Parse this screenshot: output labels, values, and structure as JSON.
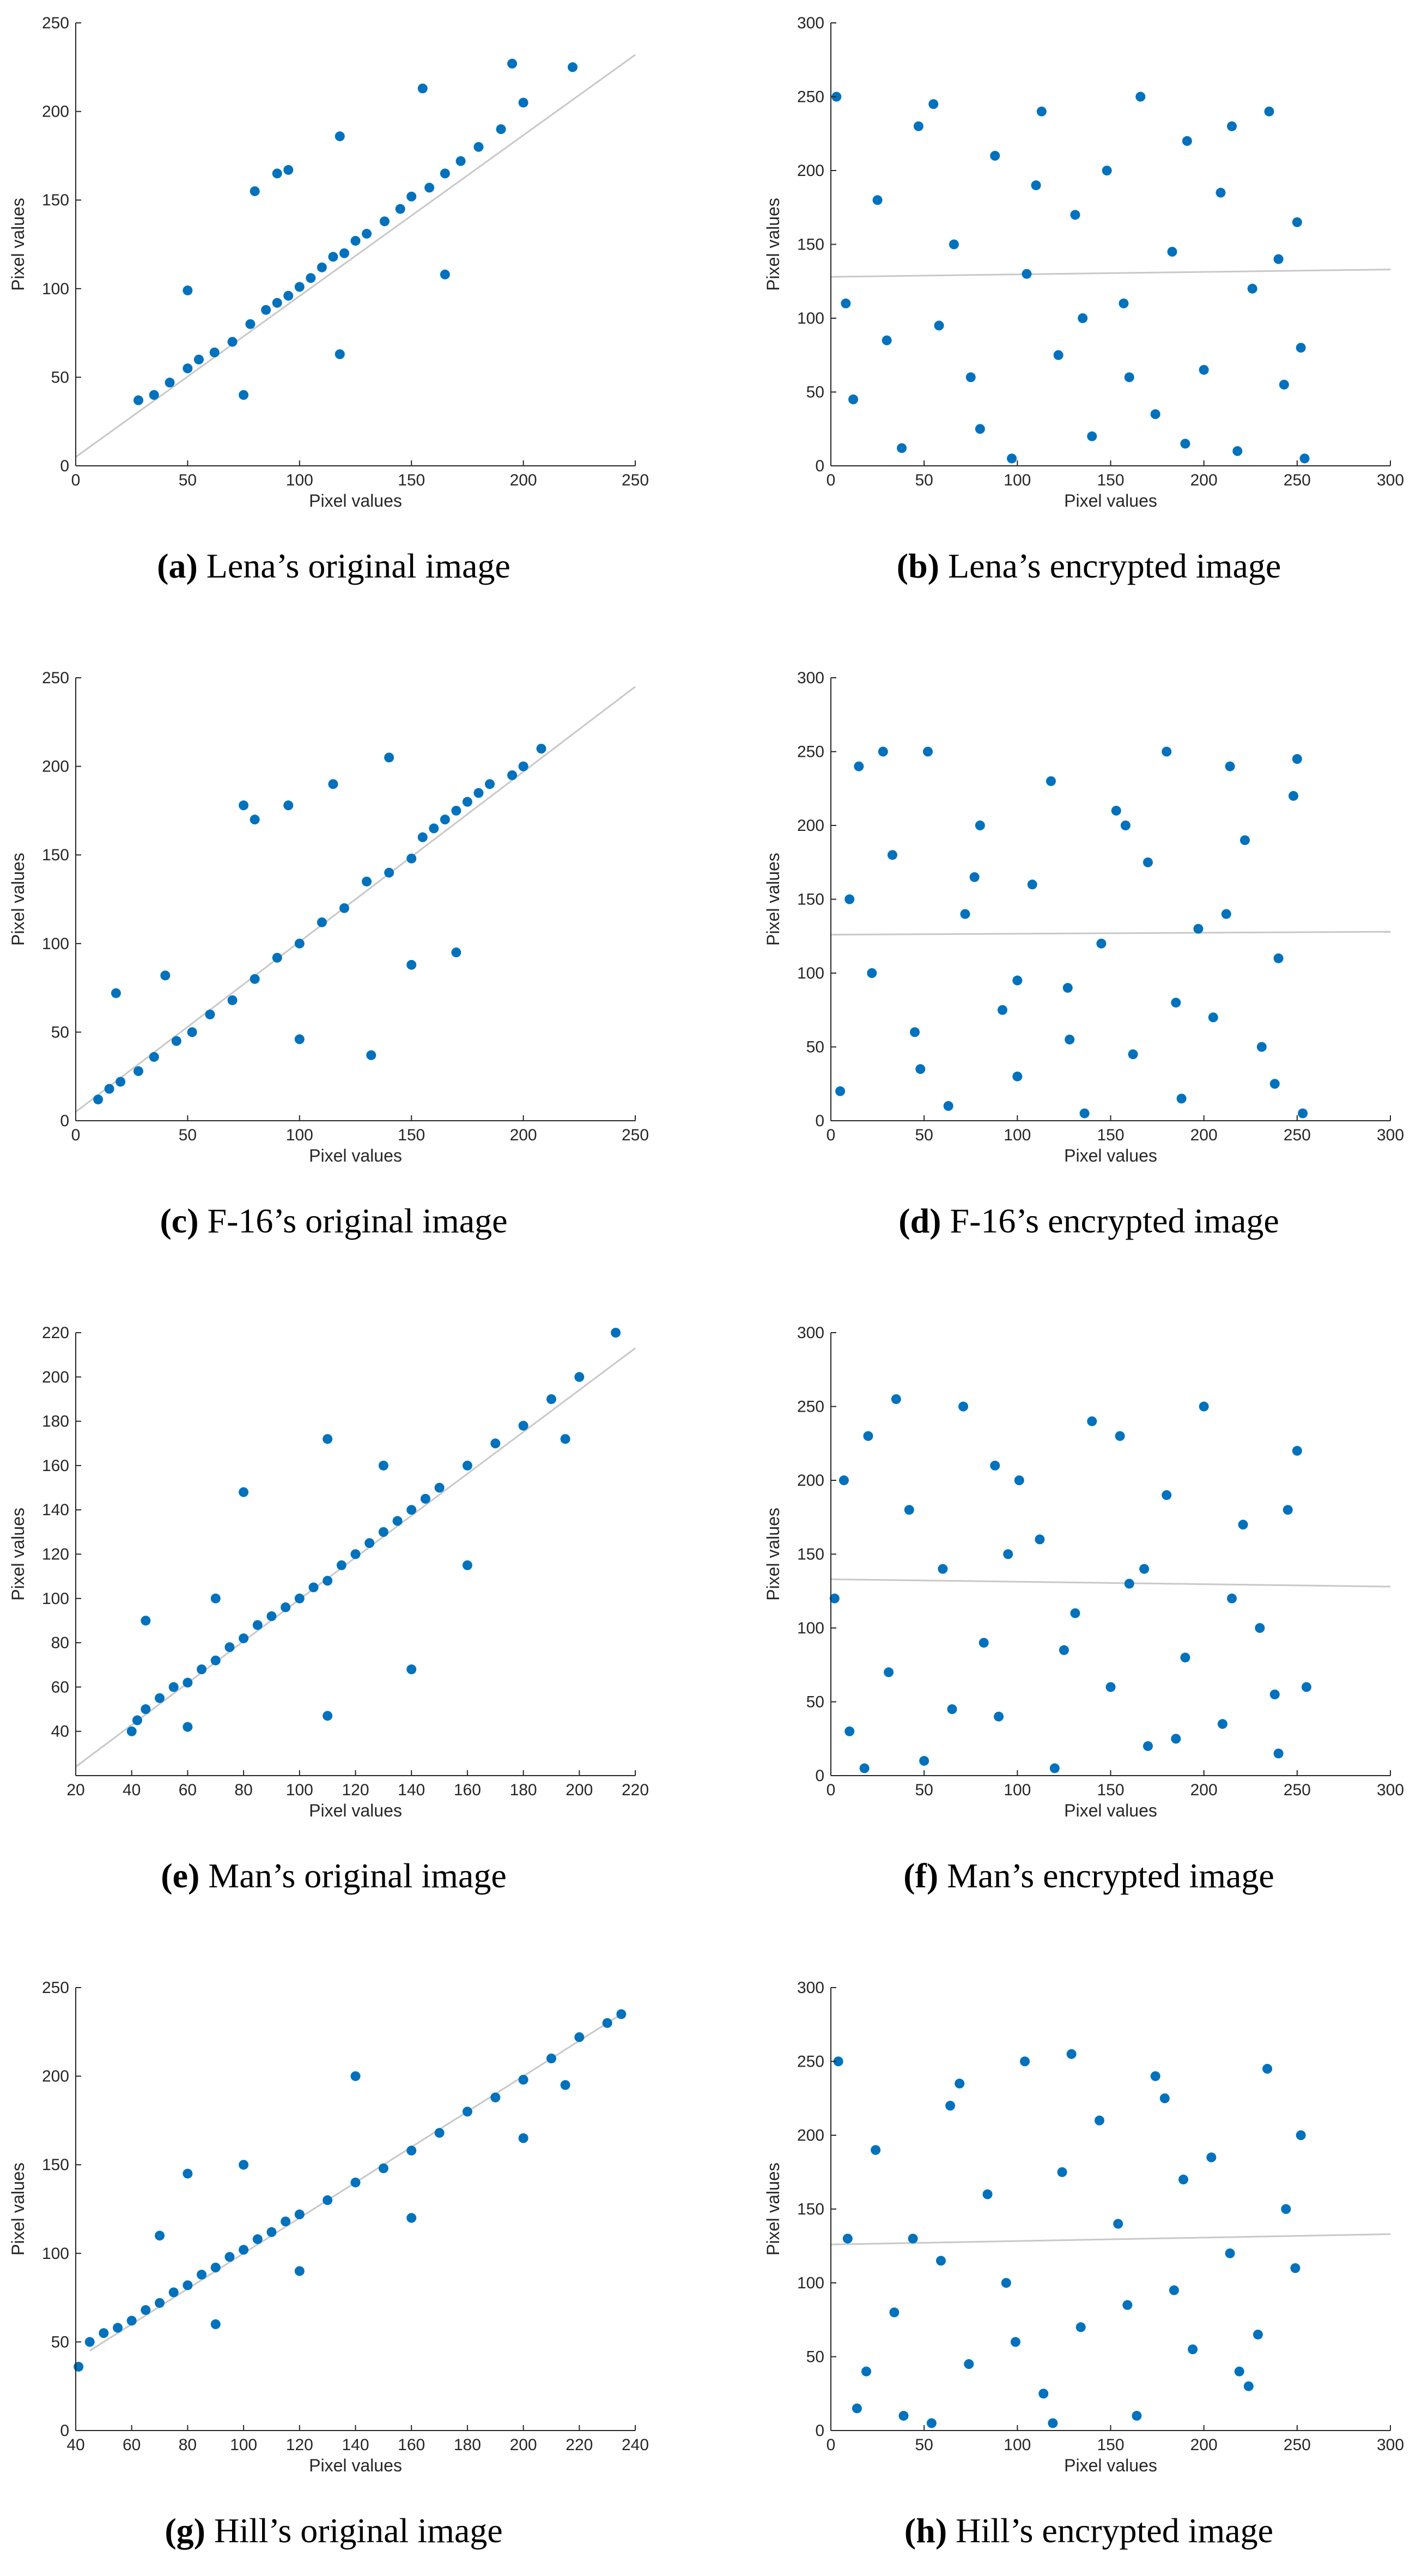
{
  "chart_data": [
    {
      "type": "scatter",
      "caption_label": "(a)",
      "caption": "Lena’s original image",
      "x_label": "Pixel values",
      "y_label": "Pixel values",
      "color": "#0072bd",
      "xlim": [
        0,
        250
      ],
      "ylim": [
        0,
        250
      ],
      "xticks": [
        0,
        50,
        100,
        150,
        200,
        250
      ],
      "yticks": [
        0,
        50,
        100,
        150,
        200,
        250
      ],
      "x": [
        28,
        35,
        42,
        50,
        55,
        62,
        70,
        78,
        85,
        90,
        95,
        100,
        105,
        110,
        115,
        120,
        125,
        130,
        138,
        145,
        150,
        158,
        165,
        172,
        180,
        190,
        200,
        222,
        50,
        118,
        155,
        165,
        118,
        75,
        80,
        90,
        95,
        195
      ],
      "values": [
        37,
        40,
        47,
        55,
        60,
        64,
        70,
        80,
        88,
        92,
        96,
        101,
        106,
        112,
        118,
        120,
        127,
        131,
        138,
        145,
        152,
        157,
        165,
        172,
        180,
        190,
        205,
        225,
        99,
        186,
        213,
        108,
        63,
        40,
        155,
        165,
        167,
        227
      ],
      "fit_line": {
        "color": "#c8c8c8",
        "x": [
          0,
          250
        ],
        "y": [
          5,
          232
        ]
      }
    },
    {
      "type": "scatter",
      "caption_label": "(b)",
      "caption": "Lena’s encrypted image",
      "x_label": "Pixel values",
      "y_label": "Pixel values",
      "color": "#0072bd",
      "xlim": [
        0,
        300
      ],
      "ylim": [
        0,
        300
      ],
      "xticks": [
        0,
        50,
        100,
        150,
        200,
        250,
        300
      ],
      "yticks": [
        0,
        50,
        100,
        150,
        200,
        250,
        300
      ],
      "x": [
        3,
        12,
        25,
        38,
        47,
        58,
        66,
        75,
        88,
        97,
        105,
        113,
        122,
        131,
        140,
        148,
        157,
        166,
        174,
        183,
        191,
        200,
        209,
        218,
        226,
        235,
        243,
        250,
        254,
        8,
        30,
        55,
        80,
        110,
        135,
        160,
        190,
        215,
        240,
        252
      ],
      "values": [
        250,
        45,
        180,
        12,
        230,
        95,
        150,
        60,
        210,
        5,
        130,
        240,
        75,
        170,
        20,
        200,
        110,
        250,
        35,
        145,
        220,
        65,
        185,
        10,
        120,
        240,
        55,
        165,
        5,
        110,
        85,
        245,
        25,
        190,
        100,
        60,
        15,
        230,
        140,
        80
      ],
      "fit_line": {
        "color": "#c8c8c8",
        "x": [
          0,
          300
        ],
        "y": [
          128,
          133
        ]
      }
    },
    {
      "type": "scatter",
      "caption_label": "(c)",
      "caption": "F-16’s original image",
      "x_label": "Pixel values",
      "y_label": "Pixel values",
      "color": "#0072bd",
      "xlim": [
        0,
        250
      ],
      "ylim": [
        0,
        250
      ],
      "xticks": [
        0,
        50,
        100,
        150,
        200,
        250
      ],
      "yticks": [
        0,
        50,
        100,
        150,
        200,
        250
      ],
      "x": [
        10,
        15,
        20,
        28,
        35,
        45,
        52,
        60,
        70,
        80,
        90,
        100,
        110,
        120,
        130,
        140,
        150,
        155,
        160,
        165,
        170,
        175,
        180,
        185,
        195,
        200,
        208,
        75,
        80,
        95,
        115,
        132,
        170,
        40,
        18,
        150,
        100,
        140
      ],
      "values": [
        12,
        18,
        22,
        28,
        36,
        45,
        50,
        60,
        68,
        80,
        92,
        100,
        112,
        120,
        135,
        140,
        148,
        160,
        165,
        170,
        175,
        180,
        185,
        190,
        195,
        200,
        210,
        178,
        170,
        178,
        190,
        37,
        95,
        82,
        72,
        88,
        46,
        205
      ],
      "fit_line": {
        "color": "#c8c8c8",
        "x": [
          0,
          250
        ],
        "y": [
          5,
          245
        ]
      }
    },
    {
      "type": "scatter",
      "caption_label": "(d)",
      "caption": "F-16’s encrypted image",
      "x_label": "Pixel values",
      "y_label": "Pixel values",
      "color": "#0072bd",
      "xlim": [
        0,
        300
      ],
      "ylim": [
        0,
        300
      ],
      "xticks": [
        0,
        50,
        100,
        150,
        200,
        250,
        300
      ],
      "yticks": [
        0,
        50,
        100,
        150,
        200,
        250,
        300
      ],
      "x": [
        5,
        15,
        22,
        33,
        45,
        52,
        63,
        72,
        80,
        92,
        100,
        108,
        118,
        127,
        136,
        145,
        153,
        162,
        170,
        180,
        188,
        197,
        205,
        214,
        222,
        231,
        240,
        248,
        253,
        10,
        28,
        48,
        77,
        100,
        128,
        158,
        185,
        212,
        238,
        250
      ],
      "values": [
        20,
        240,
        100,
        180,
        60,
        250,
        10,
        140,
        200,
        75,
        30,
        160,
        230,
        90,
        5,
        120,
        210,
        45,
        175,
        250,
        15,
        130,
        70,
        240,
        190,
        50,
        110,
        220,
        5,
        150,
        250,
        35,
        165,
        95,
        55,
        200,
        80,
        140,
        25,
        245
      ],
      "fit_line": {
        "color": "#c8c8c8",
        "x": [
          0,
          300
        ],
        "y": [
          126,
          128
        ]
      }
    },
    {
      "type": "scatter",
      "caption_label": "(e)",
      "caption": "Man’s original image",
      "x_label": "Pixel values",
      "y_label": "Pixel values",
      "color": "#0072bd",
      "xlim": [
        20,
        220
      ],
      "ylim": [
        20,
        220
      ],
      "xticks": [
        20,
        40,
        60,
        80,
        100,
        120,
        140,
        160,
        180,
        200,
        220
      ],
      "yticks": [
        40,
        60,
        80,
        100,
        120,
        140,
        160,
        180,
        200,
        220
      ],
      "x": [
        40,
        42,
        45,
        50,
        55,
        60,
        65,
        70,
        75,
        80,
        85,
        90,
        95,
        100,
        105,
        110,
        115,
        120,
        125,
        130,
        135,
        140,
        145,
        150,
        160,
        170,
        180,
        190,
        200,
        213,
        45,
        70,
        80,
        110,
        140,
        110,
        130,
        160,
        195,
        60
      ],
      "values": [
        40,
        45,
        50,
        55,
        60,
        62,
        68,
        72,
        78,
        82,
        88,
        92,
        96,
        100,
        105,
        108,
        115,
        120,
        125,
        130,
        135,
        140,
        145,
        150,
        160,
        170,
        178,
        190,
        200,
        220,
        90,
        100,
        148,
        47,
        68,
        172,
        160,
        115,
        172,
        42
      ],
      "fit_line": {
        "color": "#c8c8c8",
        "x": [
          20,
          220
        ],
        "y": [
          24,
          213
        ]
      }
    },
    {
      "type": "scatter",
      "caption_label": "(f)",
      "caption": "Man’s encrypted image",
      "x_label": "Pixel values",
      "y_label": "Pixel values",
      "color": "#0072bd",
      "xlim": [
        0,
        300
      ],
      "ylim": [
        0,
        300
      ],
      "xticks": [
        0,
        50,
        100,
        150,
        200,
        250,
        300
      ],
      "yticks": [
        0,
        50,
        100,
        150,
        200,
        250,
        300
      ],
      "x": [
        2,
        10,
        20,
        31,
        42,
        50,
        60,
        71,
        82,
        90,
        101,
        112,
        120,
        131,
        140,
        150,
        160,
        170,
        180,
        190,
        200,
        210,
        221,
        230,
        240,
        250,
        255,
        7,
        35,
        65,
        95,
        125,
        155,
        185,
        215,
        245,
        18,
        88,
        168,
        238
      ],
      "values": [
        120,
        30,
        230,
        70,
        180,
        10,
        140,
        250,
        90,
        40,
        200,
        160,
        5,
        110,
        240,
        60,
        130,
        20,
        190,
        80,
        250,
        35,
        170,
        100,
        15,
        220,
        60,
        200,
        255,
        45,
        150,
        85,
        230,
        25,
        120,
        180,
        5,
        210,
        140,
        55
      ],
      "fit_line": {
        "color": "#c8c8c8",
        "x": [
          0,
          300
        ],
        "y": [
          133,
          128
        ]
      }
    },
    {
      "type": "scatter",
      "caption_label": "(g)",
      "caption": "Hill’s original image",
      "x_label": "Pixel values",
      "y_label": "Pixel values",
      "color": "#0072bd",
      "xlim": [
        40,
        240
      ],
      "ylim": [
        0,
        250
      ],
      "xticks": [
        40,
        60,
        80,
        100,
        120,
        140,
        160,
        180,
        200,
        220,
        240
      ],
      "yticks": [
        0,
        50,
        100,
        150,
        200,
        250
      ],
      "x": [
        41,
        45,
        50,
        55,
        60,
        65,
        70,
        75,
        80,
        85,
        90,
        95,
        100,
        105,
        110,
        115,
        120,
        130,
        140,
        150,
        160,
        170,
        180,
        190,
        200,
        210,
        220,
        230,
        235,
        80,
        140,
        90,
        120,
        160,
        200,
        70,
        100,
        215
      ],
      "values": [
        36,
        50,
        55,
        58,
        62,
        68,
        72,
        78,
        82,
        88,
        92,
        98,
        102,
        108,
        112,
        118,
        122,
        130,
        140,
        148,
        158,
        168,
        180,
        188,
        198,
        210,
        222,
        230,
        235,
        145,
        200,
        60,
        90,
        120,
        165,
        110,
        150,
        195
      ],
      "fit_line": {
        "color": "#c8c8c8",
        "x": [
          45,
          236
        ],
        "y": [
          45,
          236
        ]
      }
    },
    {
      "type": "scatter",
      "caption_label": "(h)",
      "caption": "Hill’s encrypted image",
      "x_label": "Pixel values",
      "y_label": "Pixel values",
      "color": "#0072bd",
      "xlim": [
        0,
        300
      ],
      "ylim": [
        0,
        300
      ],
      "xticks": [
        0,
        50,
        100,
        150,
        200,
        250,
        300
      ],
      "yticks": [
        0,
        50,
        100,
        150,
        200,
        250,
        300
      ],
      "x": [
        4,
        14,
        24,
        34,
        44,
        54,
        64,
        74,
        84,
        94,
        104,
        114,
        124,
        134,
        144,
        154,
        164,
        174,
        184,
        194,
        204,
        214,
        224,
        234,
        244,
        252,
        9,
        39,
        69,
        99,
        129,
        159,
        189,
        219,
        249,
        19,
        59,
        119,
        179,
        229
      ],
      "values": [
        250,
        15,
        190,
        80,
        130,
        5,
        220,
        45,
        160,
        100,
        250,
        25,
        175,
        70,
        210,
        140,
        10,
        240,
        95,
        55,
        185,
        120,
        30,
        245,
        150,
        200,
        130,
        10,
        235,
        60,
        255,
        85,
        170,
        40,
        110,
        40,
        115,
        5,
        225,
        65
      ],
      "fit_line": {
        "color": "#c8c8c8",
        "x": [
          0,
          300
        ],
        "y": [
          126,
          133
        ]
      }
    }
  ]
}
